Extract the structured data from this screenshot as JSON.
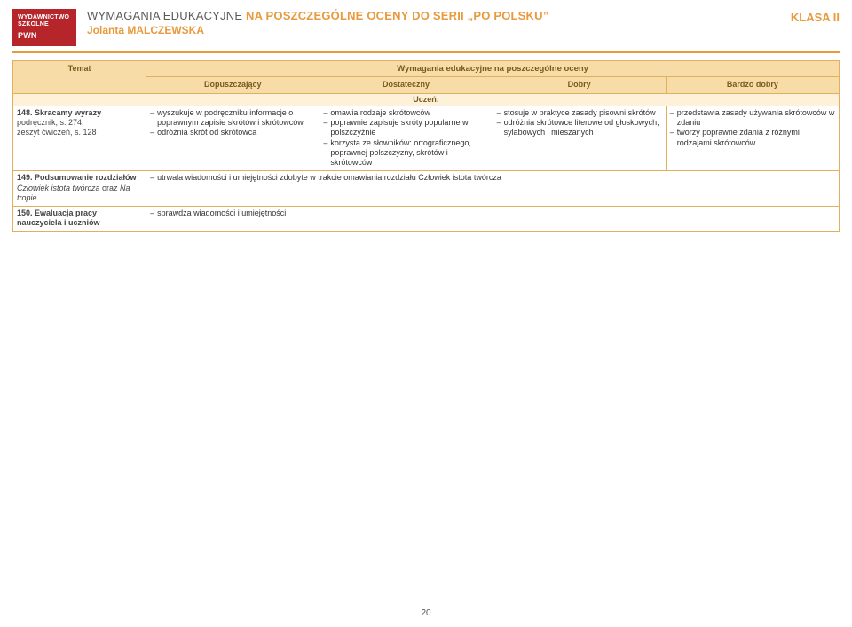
{
  "logo": {
    "l1": "WYDAWNICTWO",
    "l2": "SZKOLNE",
    "l3": "PWN"
  },
  "header": {
    "title_pre": "WYMAGANIA EDUKACYJNE ",
    "title_post": "NA POSZCZEGÓLNE OCENY DO SERII „PO POLSKU”",
    "author": "Jolanta MALCZEWSKA",
    "klasa": "KLASA II"
  },
  "table": {
    "top_header": "Wymagania edukacyjne na poszczególne oceny",
    "col_temat": "Temat",
    "levels": [
      "Dopuszczający",
      "Dostateczny",
      "Dobry",
      "Bardzo dobry"
    ],
    "uczen": "Uczeń:",
    "rows": [
      {
        "topic_lines": [
          {
            "bold": "148. Skracamy wyrazy"
          },
          {
            "plain": "podręcznik, s. 274;"
          },
          {
            "plain": "zeszyt ćwiczeń, s. 128"
          }
        ],
        "cells": [
          [
            "wyszukuje w podręczniku informacje o poprawnym zapisie skrótów i skrótowców",
            "odróżnia skrót od skrótowca"
          ],
          [
            "omawia rodzaje skrótowców",
            "poprawnie zapisuje skróty popularne w polszczyźnie",
            "korzysta ze słowników: ortograficznego, poprawnej polszczyzny, skrótów i skrótowców"
          ],
          [
            "stosuje w praktyce zasady pisowni skrótów",
            "odróżnia skrótowce literowe od głoskowych, sylabowych i mieszanych"
          ],
          [
            "przedstawia zasady używania skrótowców w zdaniu",
            "tworzy poprawne zdania z różnymi rodzajami skrótowców"
          ]
        ]
      },
      {
        "topic_lines": [
          {
            "bold": "149. Podsumowanie rozdziałów ",
            "ital_follow": "Człowiek istota twórcza",
            "plain_follow": " oraz ",
            "ital_follow2": "Na tropie"
          }
        ],
        "merged_items": [
          "utrwala wiadomości i umiejętności zdobyte w trakcie omawiania rozdziału "
        ],
        "merged_ital": "Człowiek istota twórcza"
      },
      {
        "topic_lines": [
          {
            "bold": "150. Ewaluacja pracy nauczyciela i uczniów"
          }
        ],
        "merged_items": [
          "sprawdza wiadomości i umiejętności"
        ]
      }
    ]
  },
  "pagenum": "20",
  "colors": {
    "accent": "#e89a3c",
    "header_bg": "#f7dca8",
    "uczen_bg": "#fdf1d9",
    "border": "#e0b060",
    "logo_bg": "#b5252a"
  }
}
